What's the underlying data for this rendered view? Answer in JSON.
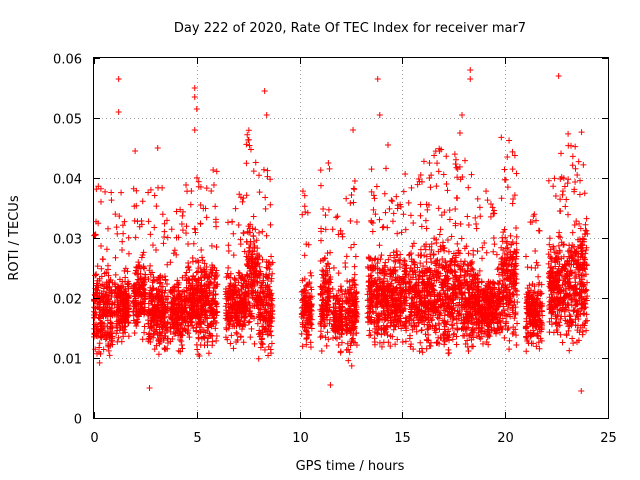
{
  "chart_data": {
    "type": "scatter",
    "title": "Day 222 of 2020, Rate Of TEC Index for receiver mar7",
    "xlabel": "GPS time / hours",
    "ylabel": "ROTI / TECUs",
    "xlim": [
      0,
      25
    ],
    "ylim": [
      0,
      0.06
    ],
    "x_ticks": [
      0,
      5,
      10,
      15,
      20,
      25
    ],
    "x_tick_labels": [
      "0",
      "5",
      "10",
      "15",
      "20",
      "25"
    ],
    "y_ticks": [
      0,
      0.01,
      0.02,
      0.03,
      0.04,
      0.05,
      0.06
    ],
    "y_tick_labels": [
      "0",
      "0.01",
      "0.02",
      "0.03",
      "0.04",
      "0.05",
      "0.06"
    ],
    "grid": true,
    "marker": "+",
    "color": "#ff0000",
    "series": [
      {
        "name": "ROTI",
        "clusters": [
          {
            "x": [
              0.0,
              0.9
            ],
            "y": [
              0.008,
              0.028
            ]
          },
          {
            "x": [
              1.0,
              1.7
            ],
            "y": [
              0.011,
              0.026
            ]
          },
          {
            "x": [
              1.9,
              2.5
            ],
            "y": [
              0.012,
              0.029
            ]
          },
          {
            "x": [
              2.6,
              3.6
            ],
            "y": [
              0.008,
              0.028
            ]
          },
          {
            "x": [
              3.7,
              4.4
            ],
            "y": [
              0.01,
              0.025
            ]
          },
          {
            "x": [
              4.4,
              5.0
            ],
            "y": [
              0.01,
              0.029
            ]
          },
          {
            "x": [
              5.0,
              6.0
            ],
            "y": [
              0.008,
              0.03
            ]
          },
          {
            "x": [
              6.4,
              7.4
            ],
            "y": [
              0.011,
              0.026
            ]
          },
          {
            "x": [
              7.4,
              8.0
            ],
            "y": [
              0.01,
              0.036
            ]
          },
          {
            "x": [
              8.0,
              8.7
            ],
            "y": [
              0.008,
              0.03
            ]
          },
          {
            "x": [
              10.1,
              10.6
            ],
            "y": [
              0.01,
              0.026
            ]
          },
          {
            "x": [
              11.0,
              11.5
            ],
            "y": [
              0.01,
              0.03
            ]
          },
          {
            "x": [
              11.6,
              12.1
            ],
            "y": [
              0.01,
              0.023
            ]
          },
          {
            "x": [
              12.2,
              12.8
            ],
            "y": [
              0.008,
              0.028
            ]
          },
          {
            "x": [
              13.3,
              14.2
            ],
            "y": [
              0.01,
              0.03
            ]
          },
          {
            "x": [
              14.2,
              15.2
            ],
            "y": [
              0.01,
              0.03
            ]
          },
          {
            "x": [
              15.3,
              16.3
            ],
            "y": [
              0.009,
              0.031
            ]
          },
          {
            "x": [
              16.3,
              17.4
            ],
            "y": [
              0.008,
              0.033
            ]
          },
          {
            "x": [
              17.4,
              18.6
            ],
            "y": [
              0.009,
              0.032
            ]
          },
          {
            "x": [
              18.6,
              19.8
            ],
            "y": [
              0.011,
              0.026
            ]
          },
          {
            "x": [
              19.8,
              20.6
            ],
            "y": [
              0.01,
              0.035
            ]
          },
          {
            "x": [
              21.0,
              21.8
            ],
            "y": [
              0.01,
              0.024
            ]
          },
          {
            "x": [
              22.1,
              23.0
            ],
            "y": [
              0.01,
              0.033
            ]
          },
          {
            "x": [
              23.0,
              24.0
            ],
            "y": [
              0.009,
              0.036
            ]
          }
        ],
        "outliers": [
          {
            "x": 1.2,
            "y": 0.0565
          },
          {
            "x": 1.2,
            "y": 0.051
          },
          {
            "x": 4.9,
            "y": 0.055
          },
          {
            "x": 4.9,
            "y": 0.0535
          },
          {
            "x": 5.0,
            "y": 0.0515
          },
          {
            "x": 4.9,
            "y": 0.048
          },
          {
            "x": 8.3,
            "y": 0.0545
          },
          {
            "x": 8.4,
            "y": 0.0505
          },
          {
            "x": 12.6,
            "y": 0.048
          },
          {
            "x": 13.8,
            "y": 0.0565
          },
          {
            "x": 13.9,
            "y": 0.0505
          },
          {
            "x": 18.3,
            "y": 0.058
          },
          {
            "x": 18.3,
            "y": 0.0565
          },
          {
            "x": 17.9,
            "y": 0.0505
          },
          {
            "x": 17.8,
            "y": 0.0475
          },
          {
            "x": 22.6,
            "y": 0.057
          },
          {
            "x": 20.1,
            "y": 0.0435
          },
          {
            "x": 23.7,
            "y": 0.0045
          },
          {
            "x": 2.7,
            "y": 0.005
          },
          {
            "x": 11.5,
            "y": 0.0055
          },
          {
            "x": 3.1,
            "y": 0.045
          },
          {
            "x": 2.0,
            "y": 0.0445
          },
          {
            "x": 5.2,
            "y": 0.0385
          },
          {
            "x": 11.4,
            "y": 0.0425
          },
          {
            "x": 14.3,
            "y": 0.0455
          },
          {
            "x": 16.8,
            "y": 0.0445
          },
          {
            "x": 23.5,
            "y": 0.0405
          }
        ]
      }
    ]
  }
}
